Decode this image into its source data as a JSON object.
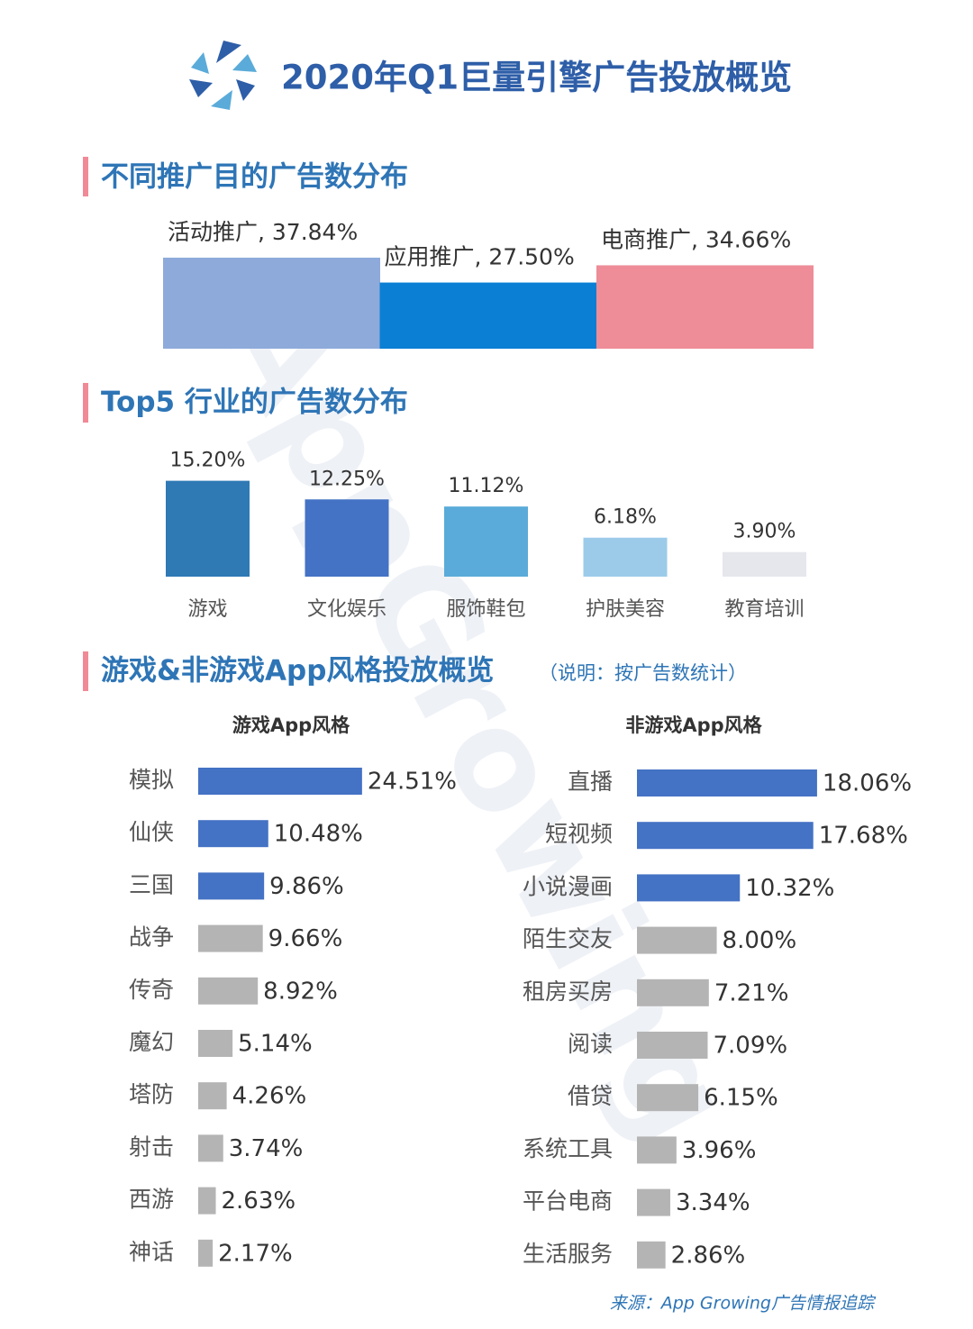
{
  "title": "2020年Q1巨量引擎广告投放概览",
  "watermark": "AppGrowing",
  "section_title": "游戏&非游戏App风格投放概览",
  "note": "（说明：按广告数统计）",
  "source": "来源：App Growing广告情报追踪",
  "chart_data": [
    {
      "type": "bar",
      "title": "不同推广目的广告数分布",
      "values": [
        37.84,
        27.5,
        34.66
      ],
      "value_labels": [
        "活动推广, 37.84%",
        "应用推广, 27.50%",
        "电商推广, 34.66%"
      ],
      "colors": [
        "#8eaadb",
        "#0b7fd4",
        "#ee8c98"
      ]
    },
    {
      "type": "bar",
      "title": "Top5 行业的广告数分布",
      "categories": [
        "游戏",
        "文化娱乐",
        "服饰鞋包",
        "护肤美容",
        "教育培训"
      ],
      "values": [
        15.2,
        12.25,
        11.12,
        6.18,
        3.9
      ],
      "value_labels": [
        "15.20%",
        "12.25%",
        "11.12%",
        "6.18%",
        "3.90%"
      ],
      "colors": [
        "#2f79b5",
        "#4472c4",
        "#5aabd9",
        "#9ccbea",
        "#e6e7ec"
      ]
    },
    {
      "type": "hbar",
      "title": "游戏App风格",
      "categories": [
        "模拟",
        "仙侠",
        "三国",
        "战争",
        "传奇",
        "魔幻",
        "塔防",
        "射击",
        "西游",
        "神话"
      ],
      "values": [
        24.51,
        10.48,
        9.86,
        9.66,
        8.92,
        5.14,
        4.26,
        3.74,
        2.63,
        2.17
      ],
      "value_labels": [
        "24.51%",
        "10.48%",
        "9.86%",
        "9.66%",
        "8.92%",
        "5.14%",
        "4.26%",
        "3.74%",
        "2.63%",
        "2.17%"
      ],
      "colors": [
        "#4472c4",
        "#4472c4",
        "#4472c4",
        "#b4b4b4",
        "#b4b4b4",
        "#b4b4b4",
        "#b4b4b4",
        "#b4b4b4",
        "#b4b4b4",
        "#b4b4b4"
      ]
    },
    {
      "type": "hbar",
      "title": "非游戏App风格",
      "categories": [
        "直播",
        "短视频",
        "小说漫画",
        "陌生交友",
        "租房买房",
        "阅读",
        "借贷",
        "系统工具",
        "平台电商",
        "生活服务"
      ],
      "values": [
        18.06,
        17.68,
        10.32,
        8.0,
        7.21,
        7.09,
        6.15,
        3.96,
        3.34,
        2.86
      ],
      "value_labels": [
        "18.06%",
        "17.68%",
        "10.32%",
        "8.00%",
        "7.21%",
        "7.09%",
        "6.15%",
        "3.96%",
        "3.34%",
        "2.86%"
      ],
      "colors": [
        "#4472c4",
        "#4472c4",
        "#4472c4",
        "#b4b4b4",
        "#b4b4b4",
        "#b4b4b4",
        "#b4b4b4",
        "#b4b4b4",
        "#b4b4b4",
        "#b4b4b4"
      ]
    }
  ]
}
